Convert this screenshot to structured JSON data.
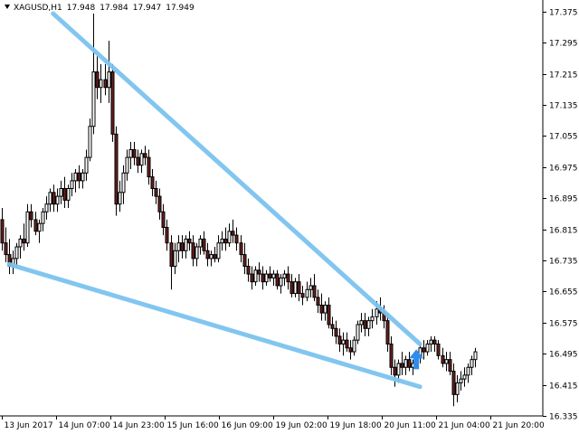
{
  "header": {
    "symbol": "XAGUSD,H1",
    "open": "17.948",
    "high": "17.984",
    "low": "17.947",
    "close": "17.949"
  },
  "chart_data": {
    "type": "candlestick",
    "symbol": "XAGUSD",
    "timeframe": "H1",
    "ylim": [
      16.335,
      17.405
    ],
    "y_ticks": [
      "17.375",
      "17.295",
      "17.215",
      "17.135",
      "17.055",
      "16.975",
      "16.895",
      "16.815",
      "16.735",
      "16.655",
      "16.575",
      "16.495",
      "16.415",
      "16.335"
    ],
    "x_ticks": [
      "13 Jun 2017",
      "14 Jun 07:00",
      "14 Jun 23:00",
      "15 Jun 16:00",
      "16 Jun 09:00",
      "19 Jun 02:00",
      "19 Jun 18:00",
      "20 Jun 11:00",
      "21 Jun 04:00",
      "21 Jun 20:00"
    ],
    "bars_visible": 148,
    "candles": [
      [
        16.84,
        16.87,
        16.76,
        16.78
      ],
      [
        16.78,
        16.82,
        16.73,
        16.75
      ],
      [
        16.75,
        16.79,
        16.7,
        16.72
      ],
      [
        16.72,
        16.76,
        16.7,
        16.74
      ],
      [
        16.74,
        16.78,
        16.72,
        16.77
      ],
      [
        16.77,
        16.8,
        16.74,
        16.79
      ],
      [
        16.79,
        16.83,
        16.76,
        16.78
      ],
      [
        16.78,
        16.88,
        16.77,
        16.86
      ],
      [
        16.86,
        16.88,
        16.82,
        16.84
      ],
      [
        16.84,
        16.86,
        16.8,
        16.81
      ],
      [
        16.81,
        16.84,
        16.78,
        16.83
      ],
      [
        16.83,
        16.87,
        16.81,
        16.86
      ],
      [
        16.86,
        16.9,
        16.84,
        16.88
      ],
      [
        16.88,
        16.92,
        16.86,
        16.91
      ],
      [
        16.91,
        16.93,
        16.86,
        16.88
      ],
      [
        16.88,
        16.92,
        16.86,
        16.9
      ],
      [
        16.9,
        16.94,
        16.88,
        16.92
      ],
      [
        16.92,
        16.95,
        16.87,
        16.89
      ],
      [
        16.89,
        16.93,
        16.87,
        16.92
      ],
      [
        16.92,
        16.96,
        16.9,
        16.94
      ],
      [
        16.94,
        16.97,
        16.91,
        16.96
      ],
      [
        16.96,
        16.98,
        16.92,
        16.94
      ],
      [
        16.94,
        16.97,
        16.92,
        16.96
      ],
      [
        16.96,
        17.02,
        16.94,
        17.0
      ],
      [
        17.0,
        17.1,
        16.99,
        17.08
      ],
      [
        17.08,
        17.37,
        17.06,
        17.22
      ],
      [
        17.22,
        17.26,
        17.15,
        17.18
      ],
      [
        17.18,
        17.24,
        17.14,
        17.2
      ],
      [
        17.2,
        17.24,
        17.16,
        17.18
      ],
      [
        17.18,
        17.3,
        17.14,
        17.22
      ],
      [
        17.22,
        17.24,
        17.04,
        17.06
      ],
      [
        17.06,
        17.08,
        16.85,
        16.88
      ],
      [
        16.88,
        16.94,
        16.86,
        16.91
      ],
      [
        16.91,
        16.98,
        16.88,
        16.96
      ],
      [
        16.96,
        17.02,
        16.94,
        17.0
      ],
      [
        17.0,
        17.04,
        16.97,
        17.02
      ],
      [
        17.02,
        17.04,
        16.98,
        17.0
      ],
      [
        17.0,
        17.02,
        16.96,
        16.98
      ],
      [
        16.98,
        17.02,
        16.96,
        17.01
      ],
      [
        17.01,
        17.03,
        16.98,
        17.0
      ],
      [
        17.0,
        17.02,
        16.93,
        16.95
      ],
      [
        16.95,
        16.97,
        16.9,
        16.92
      ],
      [
        16.92,
        16.94,
        16.88,
        16.9
      ],
      [
        16.9,
        16.92,
        16.84,
        16.86
      ],
      [
        16.86,
        16.88,
        16.8,
        16.82
      ],
      [
        16.82,
        16.84,
        16.76,
        16.78
      ],
      [
        16.78,
        16.8,
        16.66,
        16.72
      ],
      [
        16.72,
        16.78,
        16.7,
        16.76
      ],
      [
        16.76,
        16.8,
        16.73,
        16.78
      ],
      [
        16.78,
        16.8,
        16.74,
        16.76
      ],
      [
        16.76,
        16.8,
        16.74,
        16.79
      ],
      [
        16.79,
        16.81,
        16.76,
        16.78
      ],
      [
        16.78,
        16.8,
        16.72,
        16.74
      ],
      [
        16.74,
        16.78,
        16.72,
        16.77
      ],
      [
        16.77,
        16.8,
        16.75,
        16.79
      ],
      [
        16.79,
        16.81,
        16.75,
        16.76
      ],
      [
        16.76,
        16.78,
        16.72,
        16.74
      ],
      [
        16.74,
        16.76,
        16.72,
        16.75
      ],
      [
        16.75,
        16.77,
        16.73,
        16.74
      ],
      [
        16.74,
        16.8,
        16.73,
        16.78
      ],
      [
        16.78,
        16.81,
        16.76,
        16.79
      ],
      [
        16.79,
        16.82,
        16.76,
        16.78
      ],
      [
        16.78,
        16.83,
        16.77,
        16.81
      ],
      [
        16.81,
        16.84,
        16.78,
        16.8
      ],
      [
        16.8,
        16.82,
        16.76,
        16.78
      ],
      [
        16.78,
        16.8,
        16.73,
        16.75
      ],
      [
        16.75,
        16.78,
        16.7,
        16.72
      ],
      [
        16.72,
        16.74,
        16.68,
        16.7
      ],
      [
        16.7,
        16.72,
        16.66,
        16.68
      ],
      [
        16.68,
        16.72,
        16.67,
        16.71
      ],
      [
        16.71,
        16.73,
        16.68,
        16.7
      ],
      [
        16.7,
        16.72,
        16.66,
        16.68
      ],
      [
        16.68,
        16.71,
        16.67,
        16.7
      ],
      [
        16.7,
        16.72,
        16.68,
        16.69
      ],
      [
        16.69,
        16.71,
        16.67,
        16.7
      ],
      [
        16.7,
        16.71,
        16.66,
        16.67
      ],
      [
        16.67,
        16.7,
        16.65,
        16.69
      ],
      [
        16.69,
        16.71,
        16.67,
        16.7
      ],
      [
        16.7,
        16.72,
        16.66,
        16.68
      ],
      [
        16.68,
        16.7,
        16.64,
        16.65
      ],
      [
        16.65,
        16.69,
        16.64,
        16.68
      ],
      [
        16.68,
        16.7,
        16.63,
        16.65
      ],
      [
        16.65,
        16.67,
        16.62,
        16.64
      ],
      [
        16.64,
        16.68,
        16.63,
        16.66
      ],
      [
        16.66,
        16.69,
        16.64,
        16.67
      ],
      [
        16.67,
        16.7,
        16.63,
        16.64
      ],
      [
        16.64,
        16.66,
        16.6,
        16.62
      ],
      [
        16.62,
        16.65,
        16.58,
        16.6
      ],
      [
        16.6,
        16.63,
        16.58,
        16.62
      ],
      [
        16.62,
        16.64,
        16.56,
        16.57
      ],
      [
        16.57,
        16.59,
        16.54,
        16.56
      ],
      [
        16.56,
        16.58,
        16.52,
        16.54
      ],
      [
        16.54,
        16.56,
        16.5,
        16.52
      ],
      [
        16.52,
        16.55,
        16.49,
        16.53
      ],
      [
        16.53,
        16.55,
        16.5,
        16.51
      ],
      [
        16.51,
        16.53,
        16.48,
        16.5
      ],
      [
        16.5,
        16.54,
        16.49,
        16.53
      ],
      [
        16.53,
        16.58,
        16.52,
        16.57
      ],
      [
        16.57,
        16.6,
        16.55,
        16.58
      ],
      [
        16.58,
        16.6,
        16.54,
        16.56
      ],
      [
        16.56,
        16.59,
        16.54,
        16.58
      ],
      [
        16.58,
        16.61,
        16.56,
        16.59
      ],
      [
        16.59,
        16.63,
        16.57,
        16.61
      ],
      [
        16.61,
        16.64,
        16.58,
        16.6
      ],
      [
        16.6,
        16.62,
        16.56,
        16.58
      ],
      [
        16.58,
        16.6,
        16.5,
        16.52
      ],
      [
        16.52,
        16.54,
        16.44,
        16.46
      ],
      [
        16.46,
        16.48,
        16.41,
        16.44
      ],
      [
        16.44,
        16.48,
        16.42,
        16.47
      ],
      [
        16.47,
        16.5,
        16.44,
        16.46
      ],
      [
        16.46,
        16.49,
        16.44,
        16.48
      ],
      [
        16.48,
        16.5,
        16.45,
        16.46
      ],
      [
        16.46,
        16.48,
        16.44,
        16.47
      ],
      [
        16.47,
        16.5,
        16.46,
        16.49
      ],
      [
        16.49,
        16.52,
        16.47,
        16.51
      ],
      [
        16.51,
        16.53,
        16.48,
        16.5
      ],
      [
        16.5,
        16.53,
        16.49,
        16.52
      ],
      [
        16.52,
        16.54,
        16.5,
        16.53
      ],
      [
        16.53,
        16.54,
        16.5,
        16.52
      ],
      [
        16.52,
        16.53,
        16.48,
        16.49
      ],
      [
        16.49,
        16.51,
        16.46,
        16.47
      ],
      [
        16.47,
        16.5,
        16.45,
        16.48
      ],
      [
        16.48,
        16.5,
        16.44,
        16.45
      ],
      [
        16.45,
        16.47,
        16.36,
        16.39
      ],
      [
        16.39,
        16.44,
        16.37,
        16.42
      ],
      [
        16.42,
        16.45,
        16.4,
        16.43
      ],
      [
        16.43,
        16.46,
        16.41,
        16.44
      ],
      [
        16.44,
        16.47,
        16.42,
        16.46
      ],
      [
        16.46,
        16.49,
        16.44,
        16.48
      ],
      [
        16.48,
        16.51,
        16.46,
        16.5
      ]
    ],
    "trendlines": [
      {
        "name": "upper",
        "color": "#7cc3f0",
        "from": {
          "bar": 14,
          "price": 17.37
        },
        "to": {
          "bar": 114,
          "price": 16.52
        }
      },
      {
        "name": "lower",
        "color": "#7cc3f0",
        "from": {
          "bar": 2,
          "price": 16.725
        },
        "to": {
          "bar": 114,
          "price": 16.41
        }
      }
    ],
    "signal": {
      "type": "buy-arrow",
      "color": "#2d8cf0",
      "bar": 113,
      "price": 16.455
    },
    "colors": {
      "bull_body": "#ffffff",
      "bear_body": "#6a1f1f",
      "wick": "#000000",
      "axis": "#000000",
      "background": "#ffffff"
    }
  }
}
